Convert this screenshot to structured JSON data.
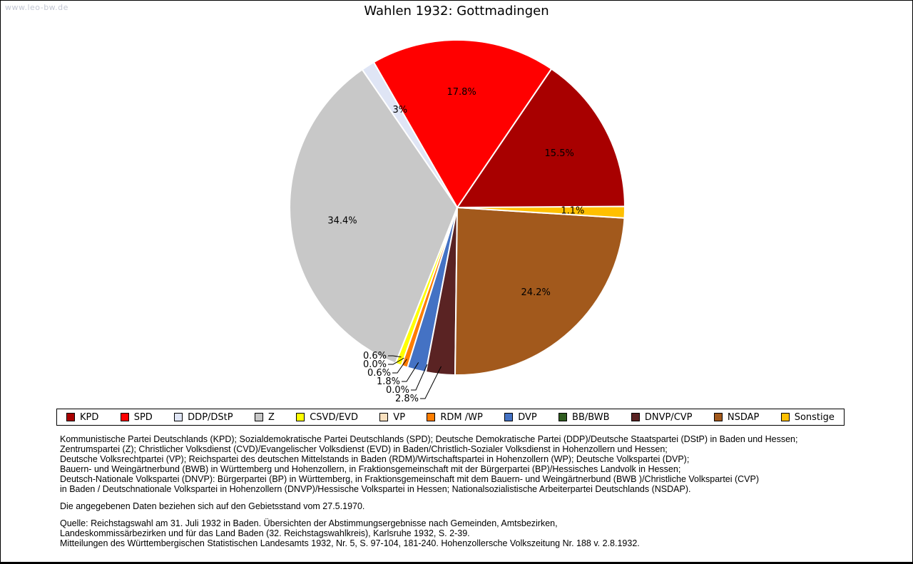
{
  "page": {
    "watermark": "www.leo-bw.de",
    "title": "Wahlen 1932: Gottmadingen"
  },
  "chart_data": {
    "type": "pie",
    "title": "Wahlen 1932: Gottmadingen",
    "start_angle_deg": 0,
    "direction": "counterclockwise",
    "value_unit": "percent",
    "legend_position": "bottom",
    "slices": [
      {
        "party": "KPD",
        "pct": 15.5,
        "label": "15.5%",
        "color": "#a80000",
        "label_mode": "inside"
      },
      {
        "party": "SPD",
        "pct": 17.8,
        "label": "17.8%",
        "color": "#ff0000",
        "label_mode": "inside"
      },
      {
        "party": "DDP/DStP",
        "pct": 1.3,
        "label": "1.3%",
        "color": "#dfe5f5",
        "label_mode": "inside"
      },
      {
        "party": "Z",
        "pct": 34.4,
        "label": "34.4%",
        "color": "#c8c8c8",
        "label_mode": "inside"
      },
      {
        "party": "CSVD/EVD",
        "pct": 0.6,
        "label": "0.6%",
        "color": "#ffff00",
        "label_mode": "callout"
      },
      {
        "party": "VP",
        "pct": 0.0,
        "label": "0.0%",
        "color": "#f9e0be",
        "label_mode": "callout"
      },
      {
        "party": "RDM /WP",
        "pct": 0.6,
        "label": "0.6%",
        "color": "#ff7d00",
        "label_mode": "callout"
      },
      {
        "party": "DVP",
        "pct": 1.8,
        "label": "1.8%",
        "color": "#4472c4",
        "label_mode": "callout"
      },
      {
        "party": "BB/BWB",
        "pct": 0.0,
        "label": "0.0%",
        "color": "#2f5c1f",
        "label_mode": "callout"
      },
      {
        "party": "DNVP/CVP",
        "pct": 2.8,
        "label": "2.8%",
        "color": "#5a2323",
        "label_mode": "callout"
      },
      {
        "party": "NSDAP",
        "pct": 24.2,
        "label": "24.2%",
        "color": "#a2591c",
        "label_mode": "inside"
      },
      {
        "party": "Sonstige",
        "pct": 1.1,
        "label": "1.1%",
        "color": "#ffc000",
        "label_mode": "inside"
      }
    ]
  },
  "notes": {
    "definitions": [
      "Kommunistische Partei Deutschlands (KPD); Sozialdemokratische Partei Deutschlands (SPD); Deutsche Demokratische Partei (DDP)/Deutsche Staatspartei (DStP) in Baden und Hessen;",
      "Zentrumspartei (Z); Christlicher Volksdienst (CVD)/Evangelischer Volksdienst (EVD) in Baden/Christlich-Sozialer Volksdienst in Hohenzollern und Hessen;",
      "Deutsche Volksrechtpartei (VP); Reichspartei des deutschen Mittelstands in Baden (RDM)/Wirtschaftspartei in Hohenzollern (WP); Deutsche Volkspartei (DVP);",
      "Bauern- und Weingärtnerbund (BWB) in Württemberg und Hohenzollern, in Fraktionsgemeinschaft mit der Bürgerpartei (BP)/Hessisches Landvolk in Hessen;",
      "Deutsch-Nationale Volkspartei (DNVP): Bürgerpartei (BP) in Württemberg, in Fraktionsgemeinschaft mit dem Bauern- und Weingärtnerbund (BWB )/Christliche Volkspartei (CVP)",
      "in Baden / Deutschnationale Volkspartei in Hohenzollern (DNVP)/Hessische Volkspartei in Hessen; Nationalsozialistische Arbeiterpartei Deutschlands (NSDAP)."
    ],
    "territory": "Die angegebenen Daten beziehen sich auf den Gebietsstand vom 27.5.1970.",
    "source_lines": [
      "Quelle: Reichstagswahl am 31. Juli 1932 in Baden. Übersichten der Abstimmungsergebnisse nach Gemeinden, Amtsbezirken,",
      "Landeskommissärbezirken und für das Land Baden (32. Reichstagswahlkreis), Karlsruhe 1932, S. 2-39.",
      "Mitteilungen des Württembergischen Statistischen Landesamts 1932, Nr. 5, S. 97-104, 181-240. Hohenzollersche Volkszeitung Nr. 188 v. 2.8.1932."
    ]
  }
}
